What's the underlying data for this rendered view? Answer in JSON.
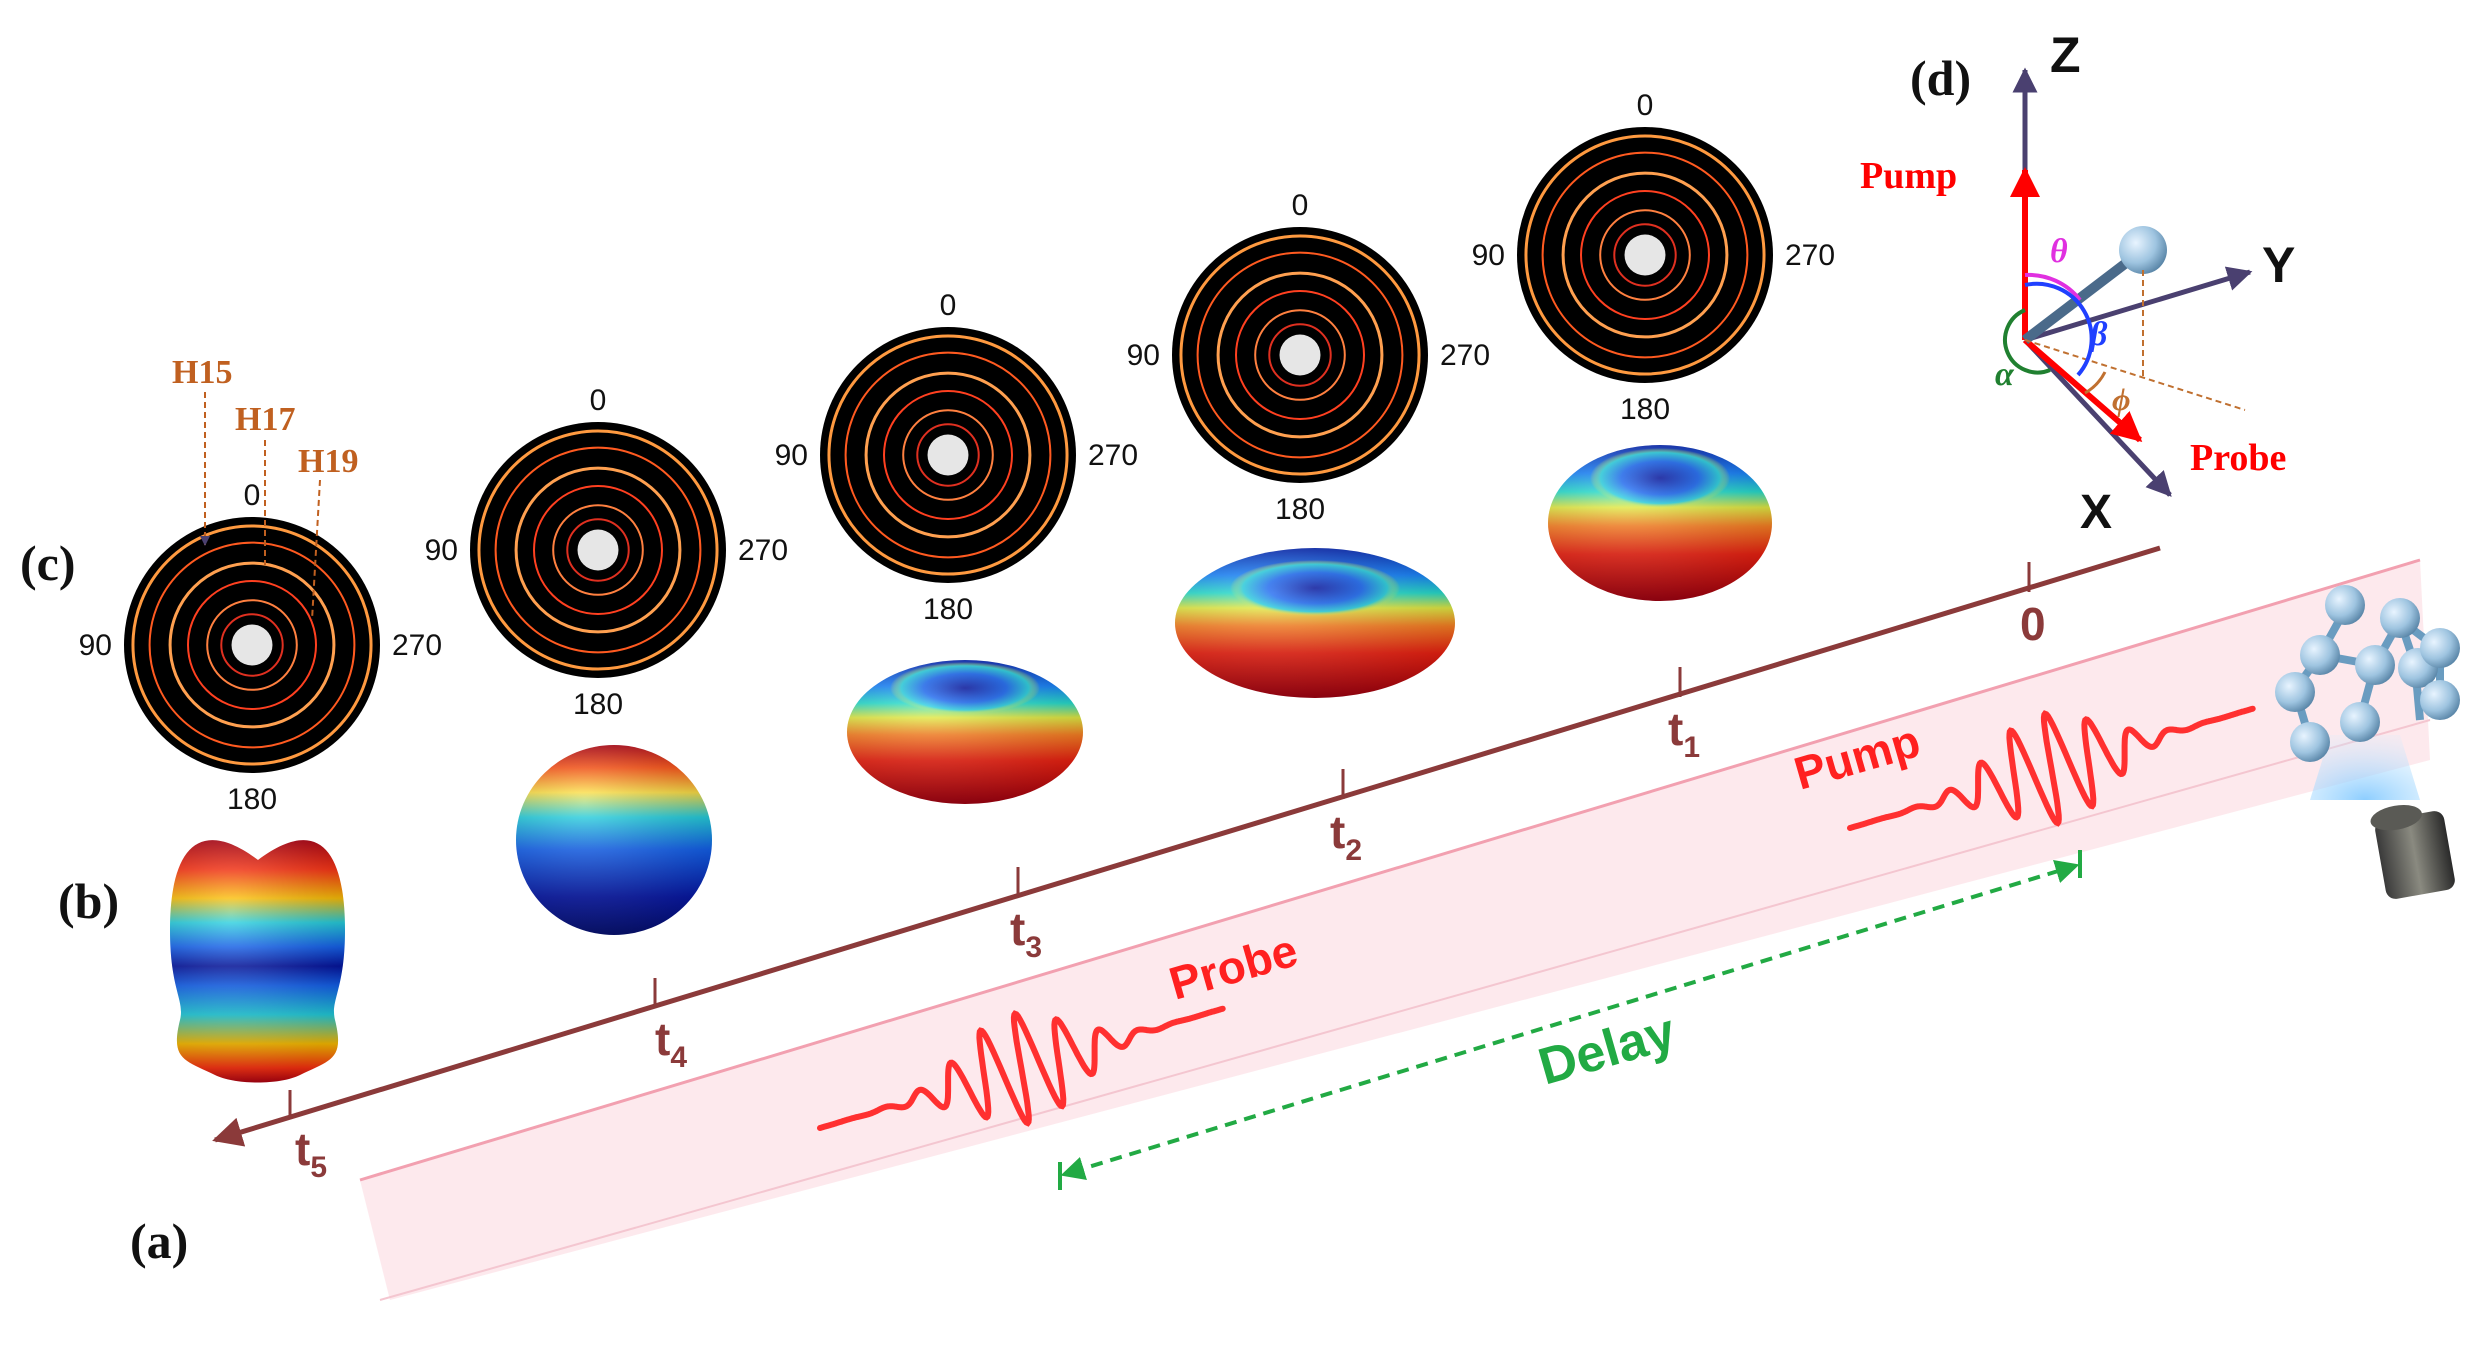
{
  "panel_labels": {
    "a": "(a)",
    "b": "(b)",
    "c": "(c)",
    "d": "(d)"
  },
  "timeline": {
    "ticks": [
      {
        "label": "0",
        "sub": ""
      },
      {
        "label": "t",
        "sub": "1"
      },
      {
        "label": "t",
        "sub": "2"
      },
      {
        "label": "t",
        "sub": "3"
      },
      {
        "label": "t",
        "sub": "4"
      },
      {
        "label": "t",
        "sub": "5"
      }
    ]
  },
  "beam": {
    "pump_label": "Pump",
    "probe_label": "Probe",
    "delay_label": "Delay"
  },
  "harmonics": [
    "H15",
    "H17",
    "H19"
  ],
  "polar_angles": {
    "top": "0",
    "left": "90",
    "right": "270",
    "bottom": "180"
  },
  "frame": {
    "z_axis": "Z",
    "y_axis": "Y",
    "x_axis": "X",
    "pump": "Pump",
    "probe": "Probe",
    "theta": "θ",
    "beta": "β",
    "alpha": "α",
    "phi": "ϕ"
  },
  "colors": {
    "timeline": "#8b3a3a",
    "pulse": "#ff3030",
    "delay": "#22aa44",
    "harmonic_label": "#c06020",
    "pump_arrow": "#ff0000",
    "axis": "#4a4070"
  }
}
